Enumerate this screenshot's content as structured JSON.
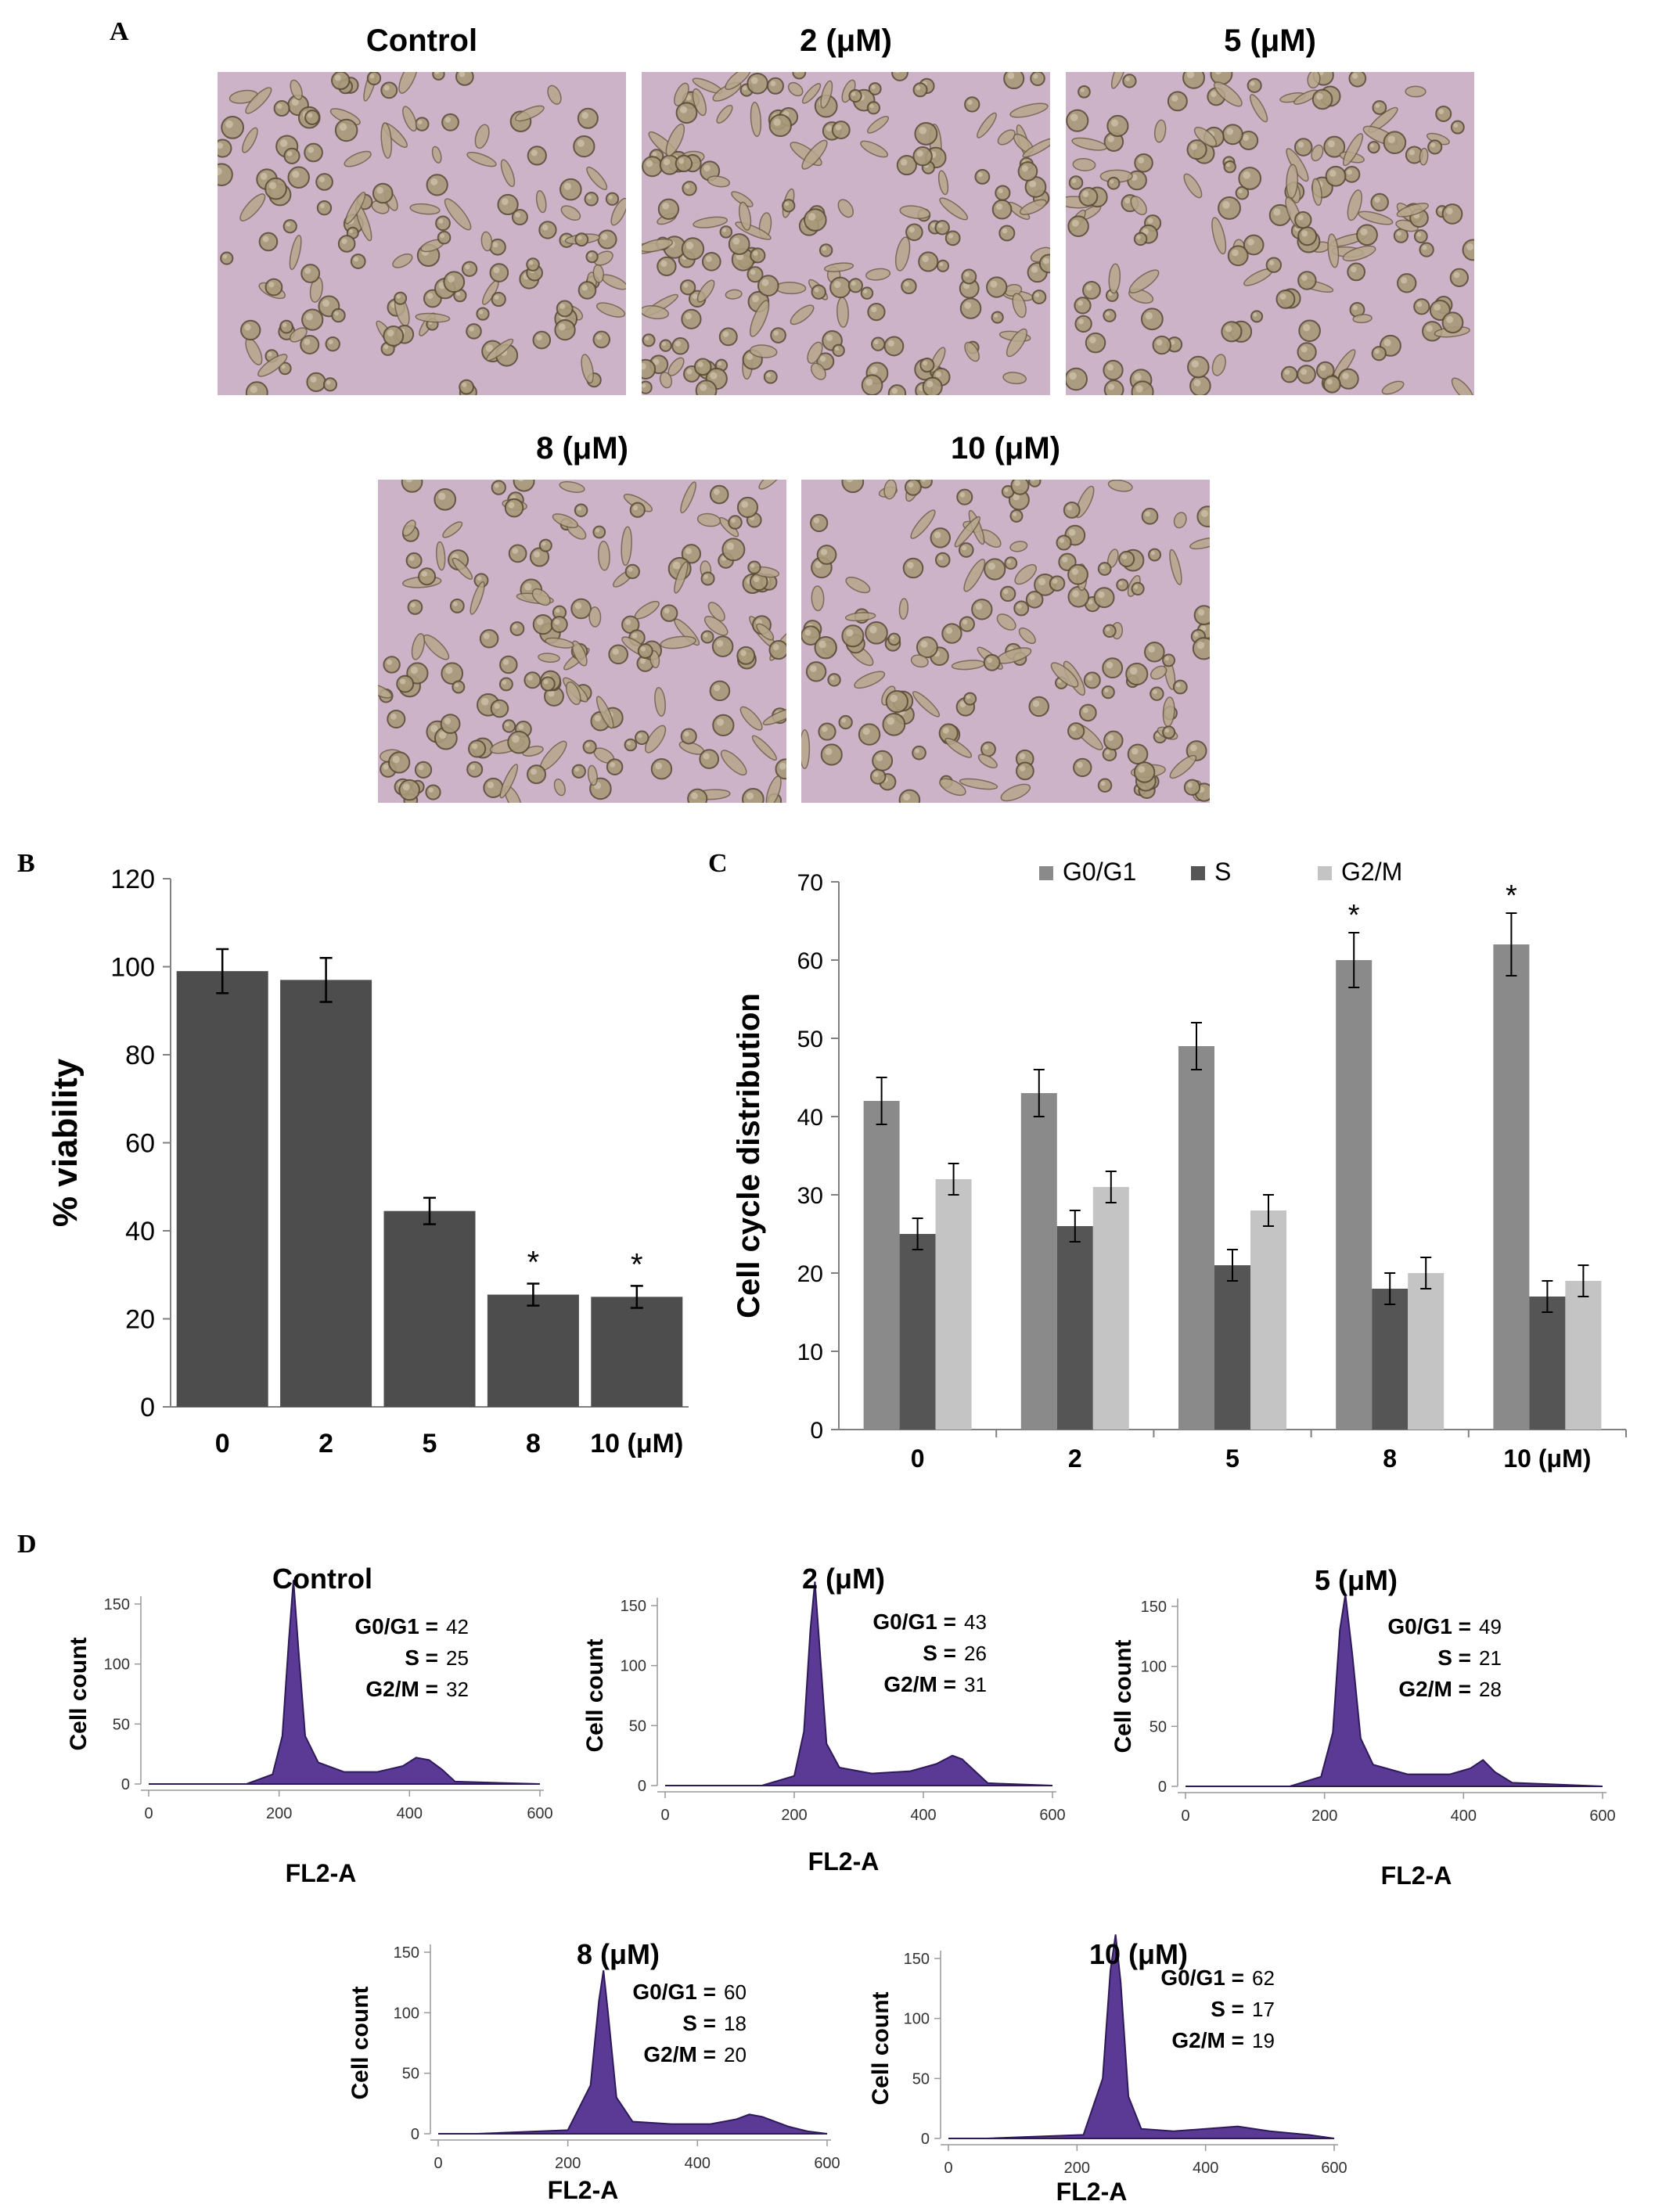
{
  "panels": {
    "a": {
      "letter": "A",
      "images": [
        {
          "label": "Control"
        },
        {
          "label": "2 (μM)"
        },
        {
          "label": "5 (μM)"
        },
        {
          "label": "8 (μM)"
        },
        {
          "label": "10 (μM)"
        }
      ]
    },
    "b": {
      "letter": "B"
    },
    "c": {
      "letter": "C"
    },
    "d": {
      "letter": "D"
    }
  },
  "chart_data": [
    {
      "id": "B",
      "type": "bar",
      "categories": [
        "0",
        "2",
        "5",
        "8",
        "10 (μM)"
      ],
      "values": [
        99,
        97,
        44.5,
        25.5,
        25
      ],
      "errors": [
        5,
        5,
        3,
        2.5,
        2.5
      ],
      "significance": [
        "",
        "",
        "",
        "*",
        "*"
      ],
      "ylabel": "% viability",
      "ylim": [
        0,
        120
      ],
      "yticks": [
        0,
        20,
        40,
        60,
        80,
        100,
        120
      ],
      "color": "#4d4d4d"
    },
    {
      "id": "C",
      "type": "bar",
      "categories": [
        "0",
        "2",
        "5",
        "8",
        "10 (μM)"
      ],
      "series": [
        {
          "name": "G0/G1",
          "color": "#8a8a8a",
          "values": [
            42,
            43,
            49,
            60,
            62
          ],
          "errors": [
            3,
            3,
            3,
            3.5,
            4
          ],
          "significance": [
            "",
            "",
            "",
            "*",
            "*"
          ]
        },
        {
          "name": "S",
          "color": "#555555",
          "values": [
            25,
            26,
            21,
            18,
            17
          ],
          "errors": [
            2,
            2,
            2,
            2,
            2
          ],
          "significance": [
            "",
            "",
            "",
            "",
            ""
          ]
        },
        {
          "name": "G2/M",
          "color": "#c4c4c4",
          "values": [
            32,
            31,
            28,
            20,
            19
          ],
          "errors": [
            2,
            2,
            2,
            2,
            2
          ],
          "significance": [
            "",
            "",
            "",
            "",
            ""
          ]
        }
      ],
      "ylabel": "Cell cycle distribution",
      "ylim": [
        0,
        70
      ],
      "yticks": [
        0,
        10,
        20,
        30,
        40,
        50,
        60,
        70
      ],
      "legend": "top"
    },
    {
      "id": "D",
      "type": "area",
      "xlabel": "FL2-A",
      "ylabel": "Cell count",
      "xlim": [
        0,
        600
      ],
      "ylim": [
        0,
        150
      ],
      "xticks": [
        0,
        200,
        400,
        600
      ],
      "yticks": [
        0,
        50,
        100,
        150
      ],
      "color": "#5b3a96",
      "histograms": [
        {
          "title": "Control",
          "stats": [
            {
              "label": "G0/G1",
              "value": "42"
            },
            {
              "label": "S",
              "value": "25"
            },
            {
              "label": "G2/M",
              "value": "32"
            }
          ],
          "x": [
            0,
            150,
            190,
            205,
            215,
            222,
            230,
            240,
            260,
            300,
            350,
            390,
            410,
            430,
            450,
            470,
            600
          ],
          "y": [
            0,
            0,
            8,
            40,
            120,
            170,
            110,
            40,
            18,
            10,
            10,
            15,
            22,
            20,
            12,
            2,
            0
          ]
        },
        {
          "title": "2 (μM)",
          "stats": [
            {
              "label": "G0/G1",
              "value": "43"
            },
            {
              "label": "S",
              "value": "26"
            },
            {
              "label": "G2/M",
              "value": "31"
            }
          ],
          "x": [
            0,
            150,
            200,
            215,
            225,
            232,
            240,
            250,
            270,
            320,
            380,
            420,
            445,
            460,
            480,
            500,
            600
          ],
          "y": [
            0,
            0,
            8,
            45,
            130,
            170,
            110,
            35,
            15,
            10,
            12,
            18,
            25,
            22,
            12,
            2,
            0
          ]
        },
        {
          "title": "5 (μM)",
          "stats": [
            {
              "label": "G0/G1",
              "value": "49"
            },
            {
              "label": "S",
              "value": "21"
            },
            {
              "label": "G2/M",
              "value": "28"
            }
          ],
          "x": [
            0,
            150,
            195,
            212,
            222,
            230,
            240,
            252,
            270,
            320,
            380,
            410,
            428,
            445,
            470,
            600
          ],
          "y": [
            0,
            0,
            8,
            45,
            130,
            160,
            110,
            40,
            18,
            10,
            10,
            15,
            22,
            12,
            3,
            0
          ]
        },
        {
          "title": "8 (μM)",
          "stats": [
            {
              "label": "G0/G1",
              "value": "60"
            },
            {
              "label": "S",
              "value": "18"
            },
            {
              "label": "G2/M",
              "value": "20"
            }
          ],
          "x": [
            0,
            60,
            200,
            235,
            248,
            255,
            262,
            275,
            300,
            360,
            420,
            460,
            480,
            500,
            540,
            570,
            600
          ],
          "y": [
            0,
            0,
            3,
            40,
            110,
            135,
            100,
            30,
            10,
            8,
            8,
            12,
            16,
            14,
            6,
            2,
            0
          ]
        },
        {
          "title": "10 (μM)",
          "stats": [
            {
              "label": "G0/G1",
              "value": "62"
            },
            {
              "label": "S",
              "value": "17"
            },
            {
              "label": "G2/M",
              "value": "19"
            }
          ],
          "x": [
            0,
            60,
            210,
            240,
            252,
            260,
            268,
            280,
            300,
            350,
            400,
            450,
            500,
            560,
            600
          ],
          "y": [
            0,
            0,
            3,
            50,
            140,
            170,
            130,
            35,
            8,
            6,
            8,
            10,
            6,
            3,
            0
          ]
        }
      ]
    }
  ]
}
